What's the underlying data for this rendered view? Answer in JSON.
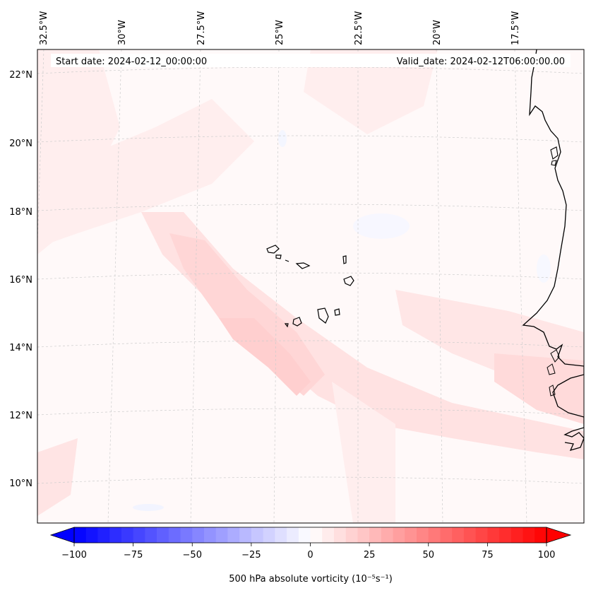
{
  "header": {
    "start_date": "Start date: 2024-02-12_00:00:00",
    "valid_date": "Valid_date: 2024-02-12T06:00:00.00"
  },
  "map": {
    "projection": "conic (lat/lon graticule)",
    "lon_labels": [
      "32.5°W",
      "30°W",
      "27.5°W",
      "25°W",
      "22.5°W",
      "20°W",
      "17.5°W"
    ],
    "lat_labels": [
      "22°N",
      "20°N",
      "18°N",
      "16°N",
      "14°N",
      "12°N",
      "10°N"
    ],
    "features": [
      "Cape Verde islands",
      "West African coastline"
    ],
    "field": "500 hPa absolute vorticity",
    "field_description": "Weak positive vorticity (light red) band oriented NW–SE across map; near-zero elsewhere"
  },
  "colorbar": {
    "label": "500 hPa absolute vorticity (10⁻⁵s⁻¹)",
    "ticks": [
      "−100",
      "−75",
      "−50",
      "−25",
      "0",
      "25",
      "50",
      "75",
      "100"
    ],
    "min": -100,
    "max": 100,
    "extend": "both",
    "colors": {
      "low": "#0000ff",
      "mid": "#ffffff",
      "high": "#ff0000"
    }
  }
}
